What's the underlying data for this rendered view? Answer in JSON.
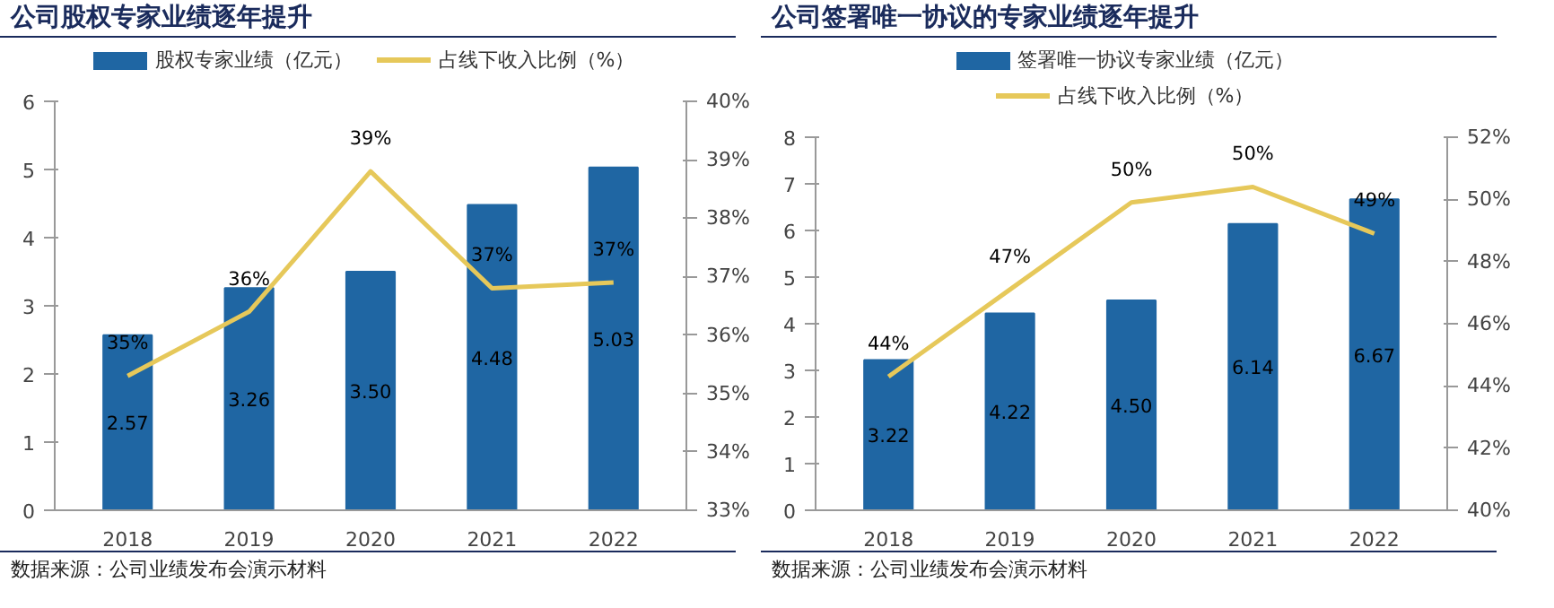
{
  "chart_data": [
    {
      "type": "bar",
      "title": "公司股权专家业绩逐年提升",
      "categories": [
        "2018",
        "2019",
        "2020",
        "2021",
        "2022"
      ],
      "legend": "top",
      "grid": false,
      "ylim": [
        0,
        6
      ],
      "yticks": [
        0,
        1,
        2,
        3,
        4,
        5,
        6
      ],
      "y2lim": [
        33,
        40
      ],
      "y2ticks": [
        {
          "value": 33,
          "label": "33%"
        },
        {
          "value": 34,
          "label": "34%"
        },
        {
          "value": 35,
          "label": "35%"
        },
        {
          "value": 36,
          "label": "36%"
        },
        {
          "value": 37,
          "label": "37%"
        },
        {
          "value": 38,
          "label": "38%"
        },
        {
          "value": 39,
          "label": "39%"
        },
        {
          "value": 40,
          "label": "40%"
        }
      ],
      "series": [
        {
          "name": "股权专家业绩（亿元）",
          "color": "#1f66a3",
          "values": [
            2.57,
            3.26,
            3.5,
            4.48,
            5.03
          ],
          "value_labels": [
            "2.57",
            "3.26",
            "3.50",
            "4.48",
            "5.03"
          ]
        },
        {
          "name": "占线下收入比例（%）",
          "type": "line",
          "axis": "y2",
          "color": "#e6c85a",
          "values": [
            35.3,
            36.4,
            38.8,
            36.8,
            36.9
          ],
          "value_labels": [
            "35%",
            "36%",
            "39%",
            "37%",
            "37%"
          ]
        }
      ],
      "annotations": [
        "数据来源：公司业绩发布会演示材料"
      ]
    },
    {
      "type": "bar",
      "title": "公司签署唯一协议的专家业绩逐年提升",
      "categories": [
        "2018",
        "2019",
        "2020",
        "2021",
        "2022"
      ],
      "legend": "top",
      "grid": false,
      "ylim": [
        0,
        8
      ],
      "yticks": [
        0,
        1,
        2,
        3,
        4,
        5,
        6,
        7,
        8
      ],
      "y2lim": [
        40,
        52
      ],
      "y2ticks": [
        {
          "value": 40,
          "label": "40%"
        },
        {
          "value": 42,
          "label": "42%"
        },
        {
          "value": 44,
          "label": "44%"
        },
        {
          "value": 46,
          "label": "46%"
        },
        {
          "value": 48,
          "label": "48%"
        },
        {
          "value": 50,
          "label": "50%"
        },
        {
          "value": 52,
          "label": "52%"
        }
      ],
      "series": [
        {
          "name": "签署唯一协议专家业绩（亿元）",
          "color": "#1f66a3",
          "values": [
            3.22,
            4.22,
            4.5,
            6.14,
            6.67
          ],
          "value_labels": [
            "3.22",
            "4.22",
            "4.50",
            "6.14",
            "6.67"
          ]
        },
        {
          "name": "占线下收入比例（%）",
          "type": "line",
          "axis": "y2",
          "color": "#e6c85a",
          "values": [
            44.3,
            47.1,
            49.9,
            50.4,
            48.9
          ],
          "value_labels": [
            "44%",
            "47%",
            "50%",
            "50%",
            "49%"
          ]
        }
      ],
      "annotations": [
        "数据来源：公司业绩发布会演示材料"
      ]
    }
  ]
}
